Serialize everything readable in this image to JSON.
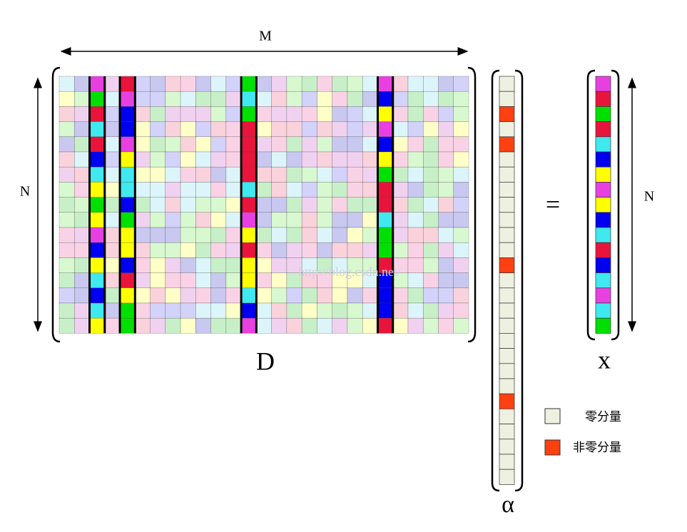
{
  "labels": {
    "m": "M",
    "n_left": "N",
    "n_right": "N",
    "d": "D",
    "alpha": "α",
    "x": "x",
    "equals": "="
  },
  "legend": [
    {
      "label": "零分量"
    },
    {
      "label": "非零分量"
    }
  ],
  "watermark": "http://blog.csdn.net/"
}
